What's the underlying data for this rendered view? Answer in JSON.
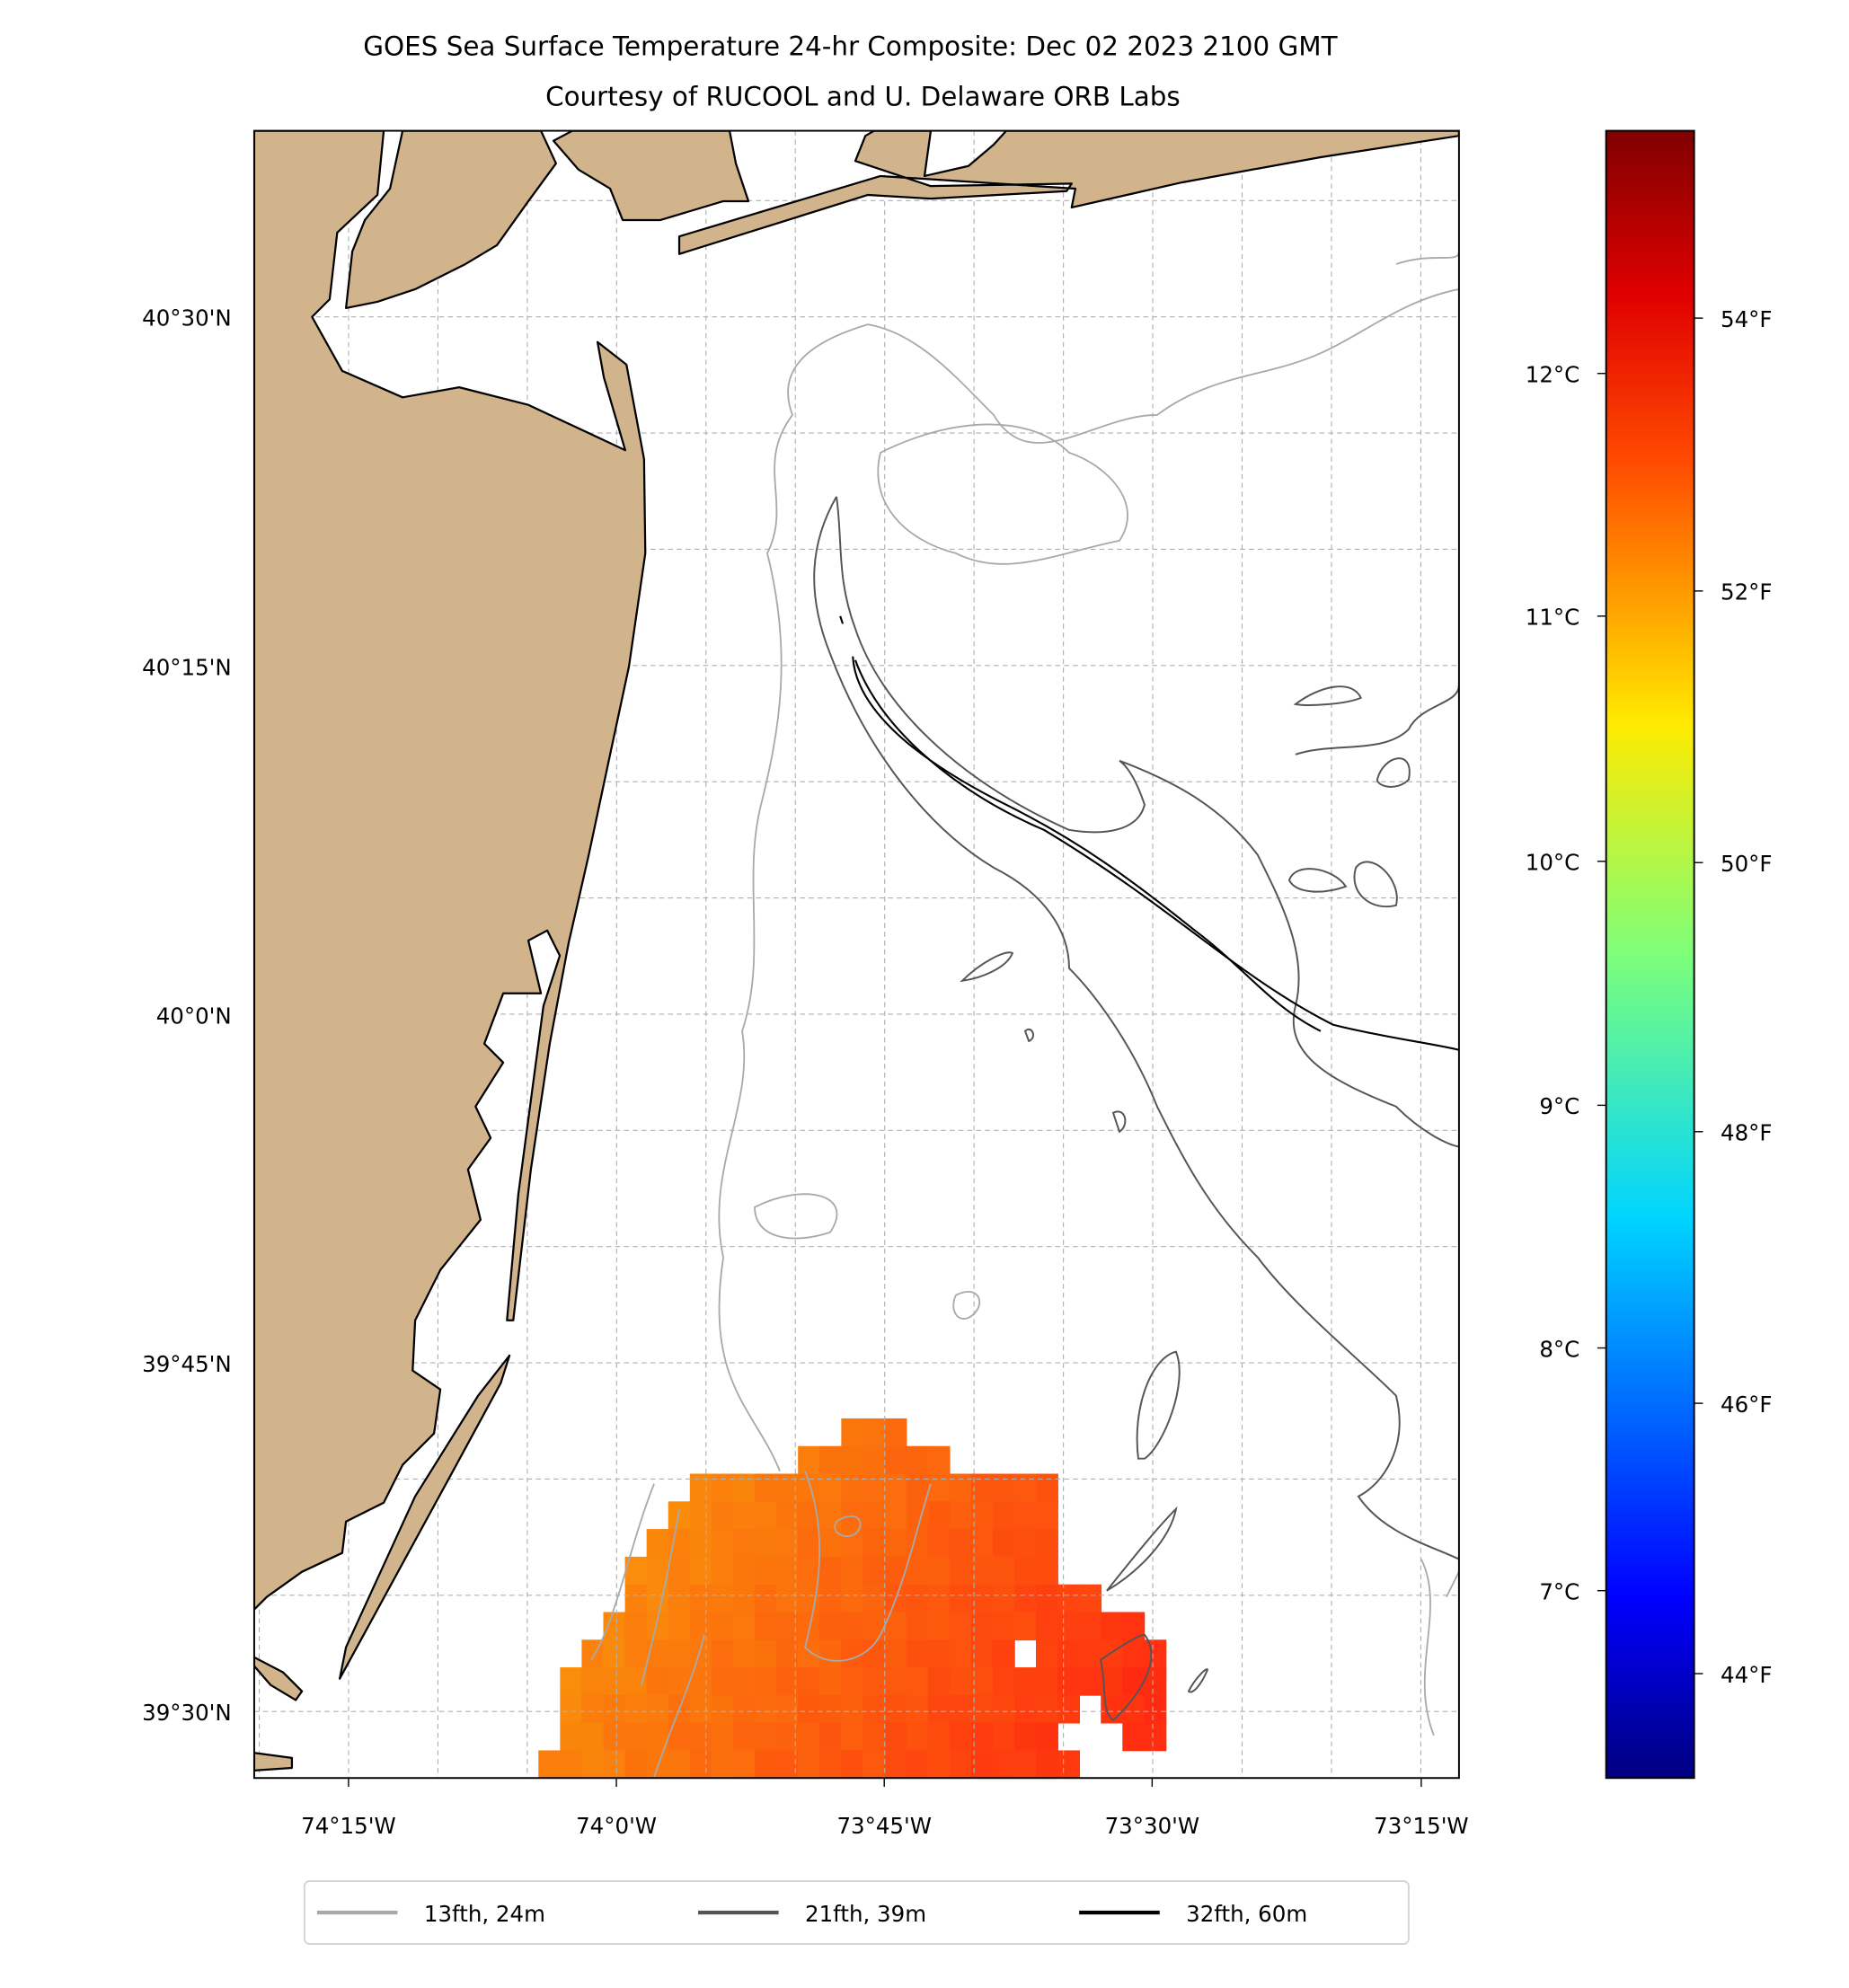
{
  "title": {
    "line1": "GOES Sea Surface Temperature 24-hr Composite: Dec 02 2023 2100 GMT",
    "line2": "Courtesy of RUCOOL and U. Delaware ORB Labs"
  },
  "axes": {
    "lon_ticks": [
      "74°15'W",
      "74°0'W",
      "73°45'W",
      "73°30'W",
      "73°15'W"
    ],
    "lat_ticks": [
      "40°30'N",
      "40°15'N",
      "40°0'N",
      "39°45'N",
      "39°30'N"
    ]
  },
  "colorbar": {
    "celsius_ticks": [
      "12°C",
      "11°C",
      "10°C",
      "9°C",
      "8°C",
      "7°C"
    ],
    "fahrenheit_ticks": [
      "54°F",
      "52°F",
      "50°F",
      "48°F",
      "46°F",
      "44°F"
    ],
    "colormap": "jet",
    "range_f": [
      43.2,
      55.6
    ]
  },
  "legend": {
    "items": [
      {
        "label": "13fth, 24m",
        "color": "#a9a9a9"
      },
      {
        "label": "21fth, 39m",
        "color": "#555555"
      },
      {
        "label": "32fth, 60m",
        "color": "#000000"
      }
    ]
  },
  "colors": {
    "land": "#d2b48c",
    "sst_low": "#f9a00a",
    "sst_high": "#ff2a10"
  },
  "chart_data": {
    "type": "heatmap",
    "title": "GOES Sea Surface Temperature 24-hr Composite: Dec 02 2023 2100 GMT",
    "lon_range": [
      "74°20'W",
      "73°13'W"
    ],
    "lat_range": [
      "39°25'N",
      "40°42'N"
    ],
    "sst_observed_range_f": [
      52,
      54.2
    ]
  }
}
